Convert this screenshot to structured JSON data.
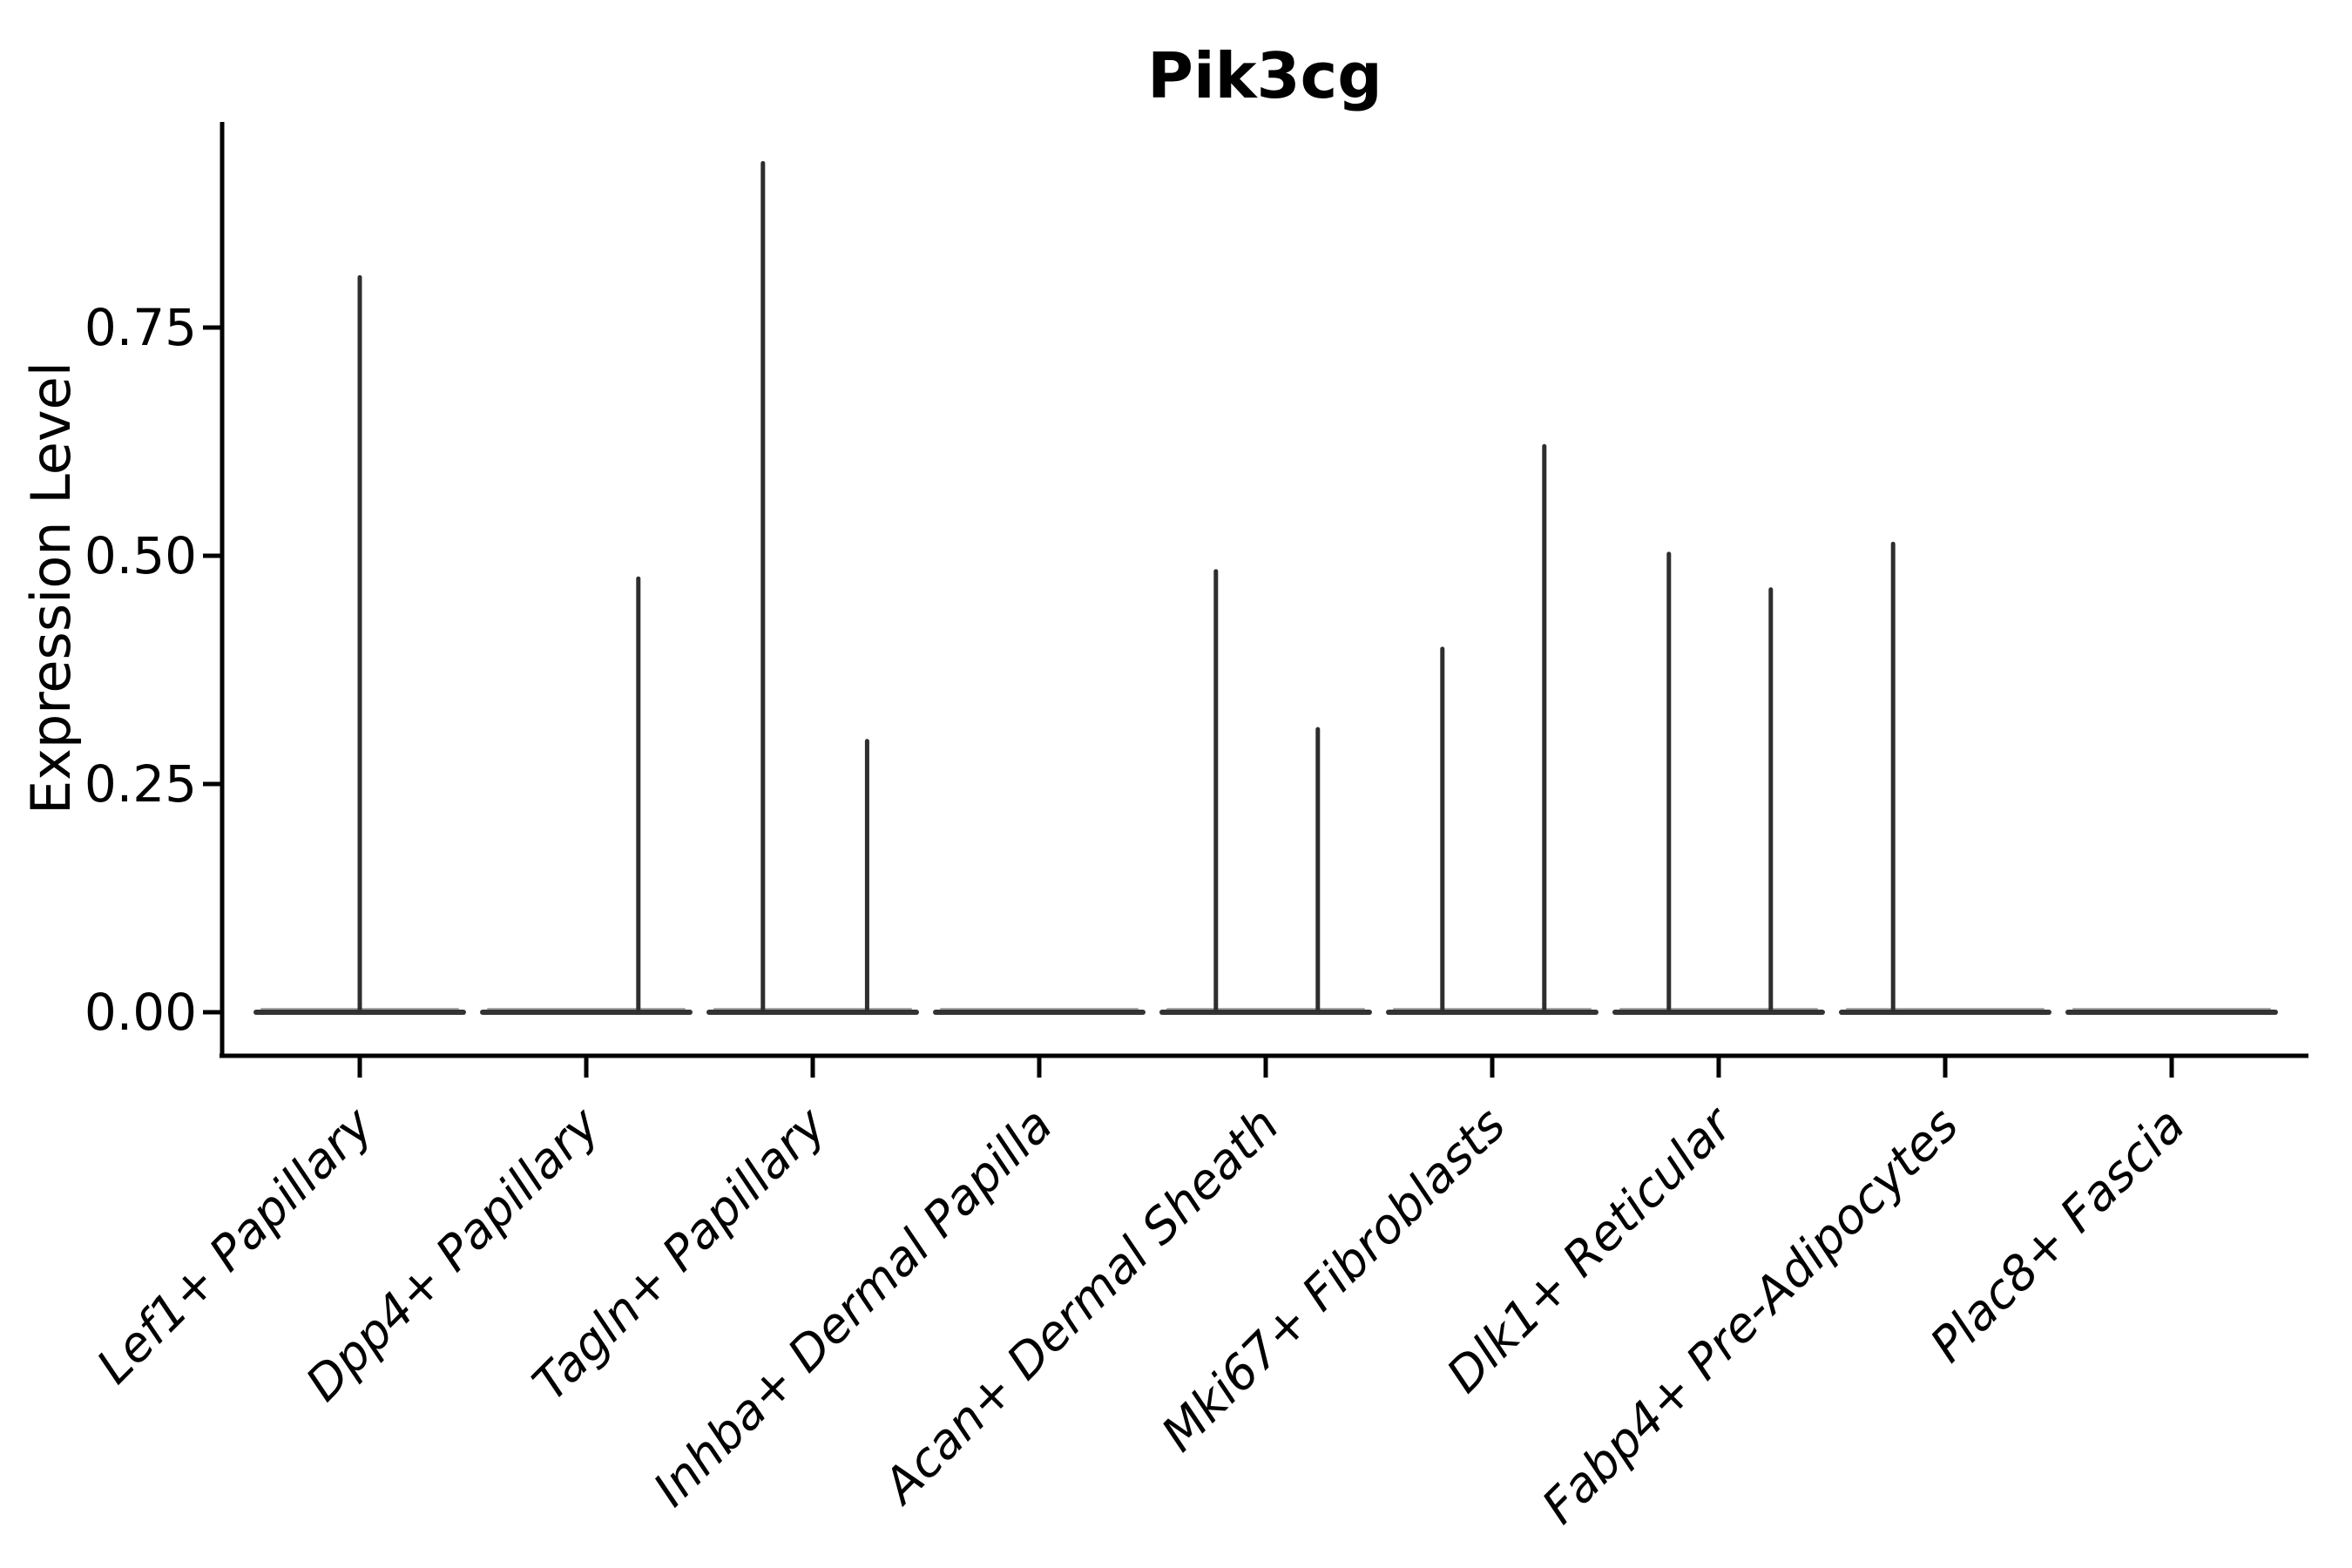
{
  "figure": {
    "background_color": "#ffffff",
    "text_color": "#000000",
    "violin_stroke_color": "#333333",
    "axis_color": "#000000"
  },
  "chart_data": {
    "type": "violin",
    "title": "Pik3cg",
    "xlabel": "",
    "ylabel": "Expression Level",
    "ylim": [
      -0.05,
      0.975
    ],
    "grid": false,
    "legend": false,
    "x_tick_rotation_degrees": 45,
    "yticks": [
      {
        "label": "0.00",
        "value": 0.0
      },
      {
        "label": "0.25",
        "value": 0.25
      },
      {
        "label": "0.50",
        "value": 0.5
      },
      {
        "label": "0.75",
        "value": 0.75
      }
    ],
    "categories": [
      {
        "label": "Lef1+ Papillary",
        "spikes": [
          {
            "pos": 0.0,
            "max": 0.805
          }
        ]
      },
      {
        "label": "Dpp4+ Papillary",
        "spikes": [
          {
            "pos": 0.23,
            "max": 0.475
          }
        ]
      },
      {
        "label": "Tagln+ Papillary",
        "spikes": [
          {
            "pos": -0.22,
            "max": 0.93
          },
          {
            "pos": 0.24,
            "max": 0.297
          }
        ]
      },
      {
        "label": "Inhba+ Dermal Papilla",
        "spikes": []
      },
      {
        "label": "Acan+ Dermal Sheath",
        "spikes": [
          {
            "pos": -0.22,
            "max": 0.483
          },
          {
            "pos": 0.23,
            "max": 0.31
          }
        ]
      },
      {
        "label": "Mki67+ Fibroblasts",
        "spikes": [
          {
            "pos": -0.22,
            "max": 0.398
          },
          {
            "pos": 0.23,
            "max": 0.62
          }
        ]
      },
      {
        "label": "Dlk1+ Reticular",
        "spikes": [
          {
            "pos": -0.22,
            "max": 0.502
          },
          {
            "pos": 0.23,
            "max": 0.463
          }
        ]
      },
      {
        "label": "Fabp4+ Pre-Adipocytes",
        "spikes": [
          {
            "pos": -0.23,
            "max": 0.513
          }
        ]
      },
      {
        "label": "Plac8+ Fascia",
        "spikes": []
      }
    ]
  }
}
